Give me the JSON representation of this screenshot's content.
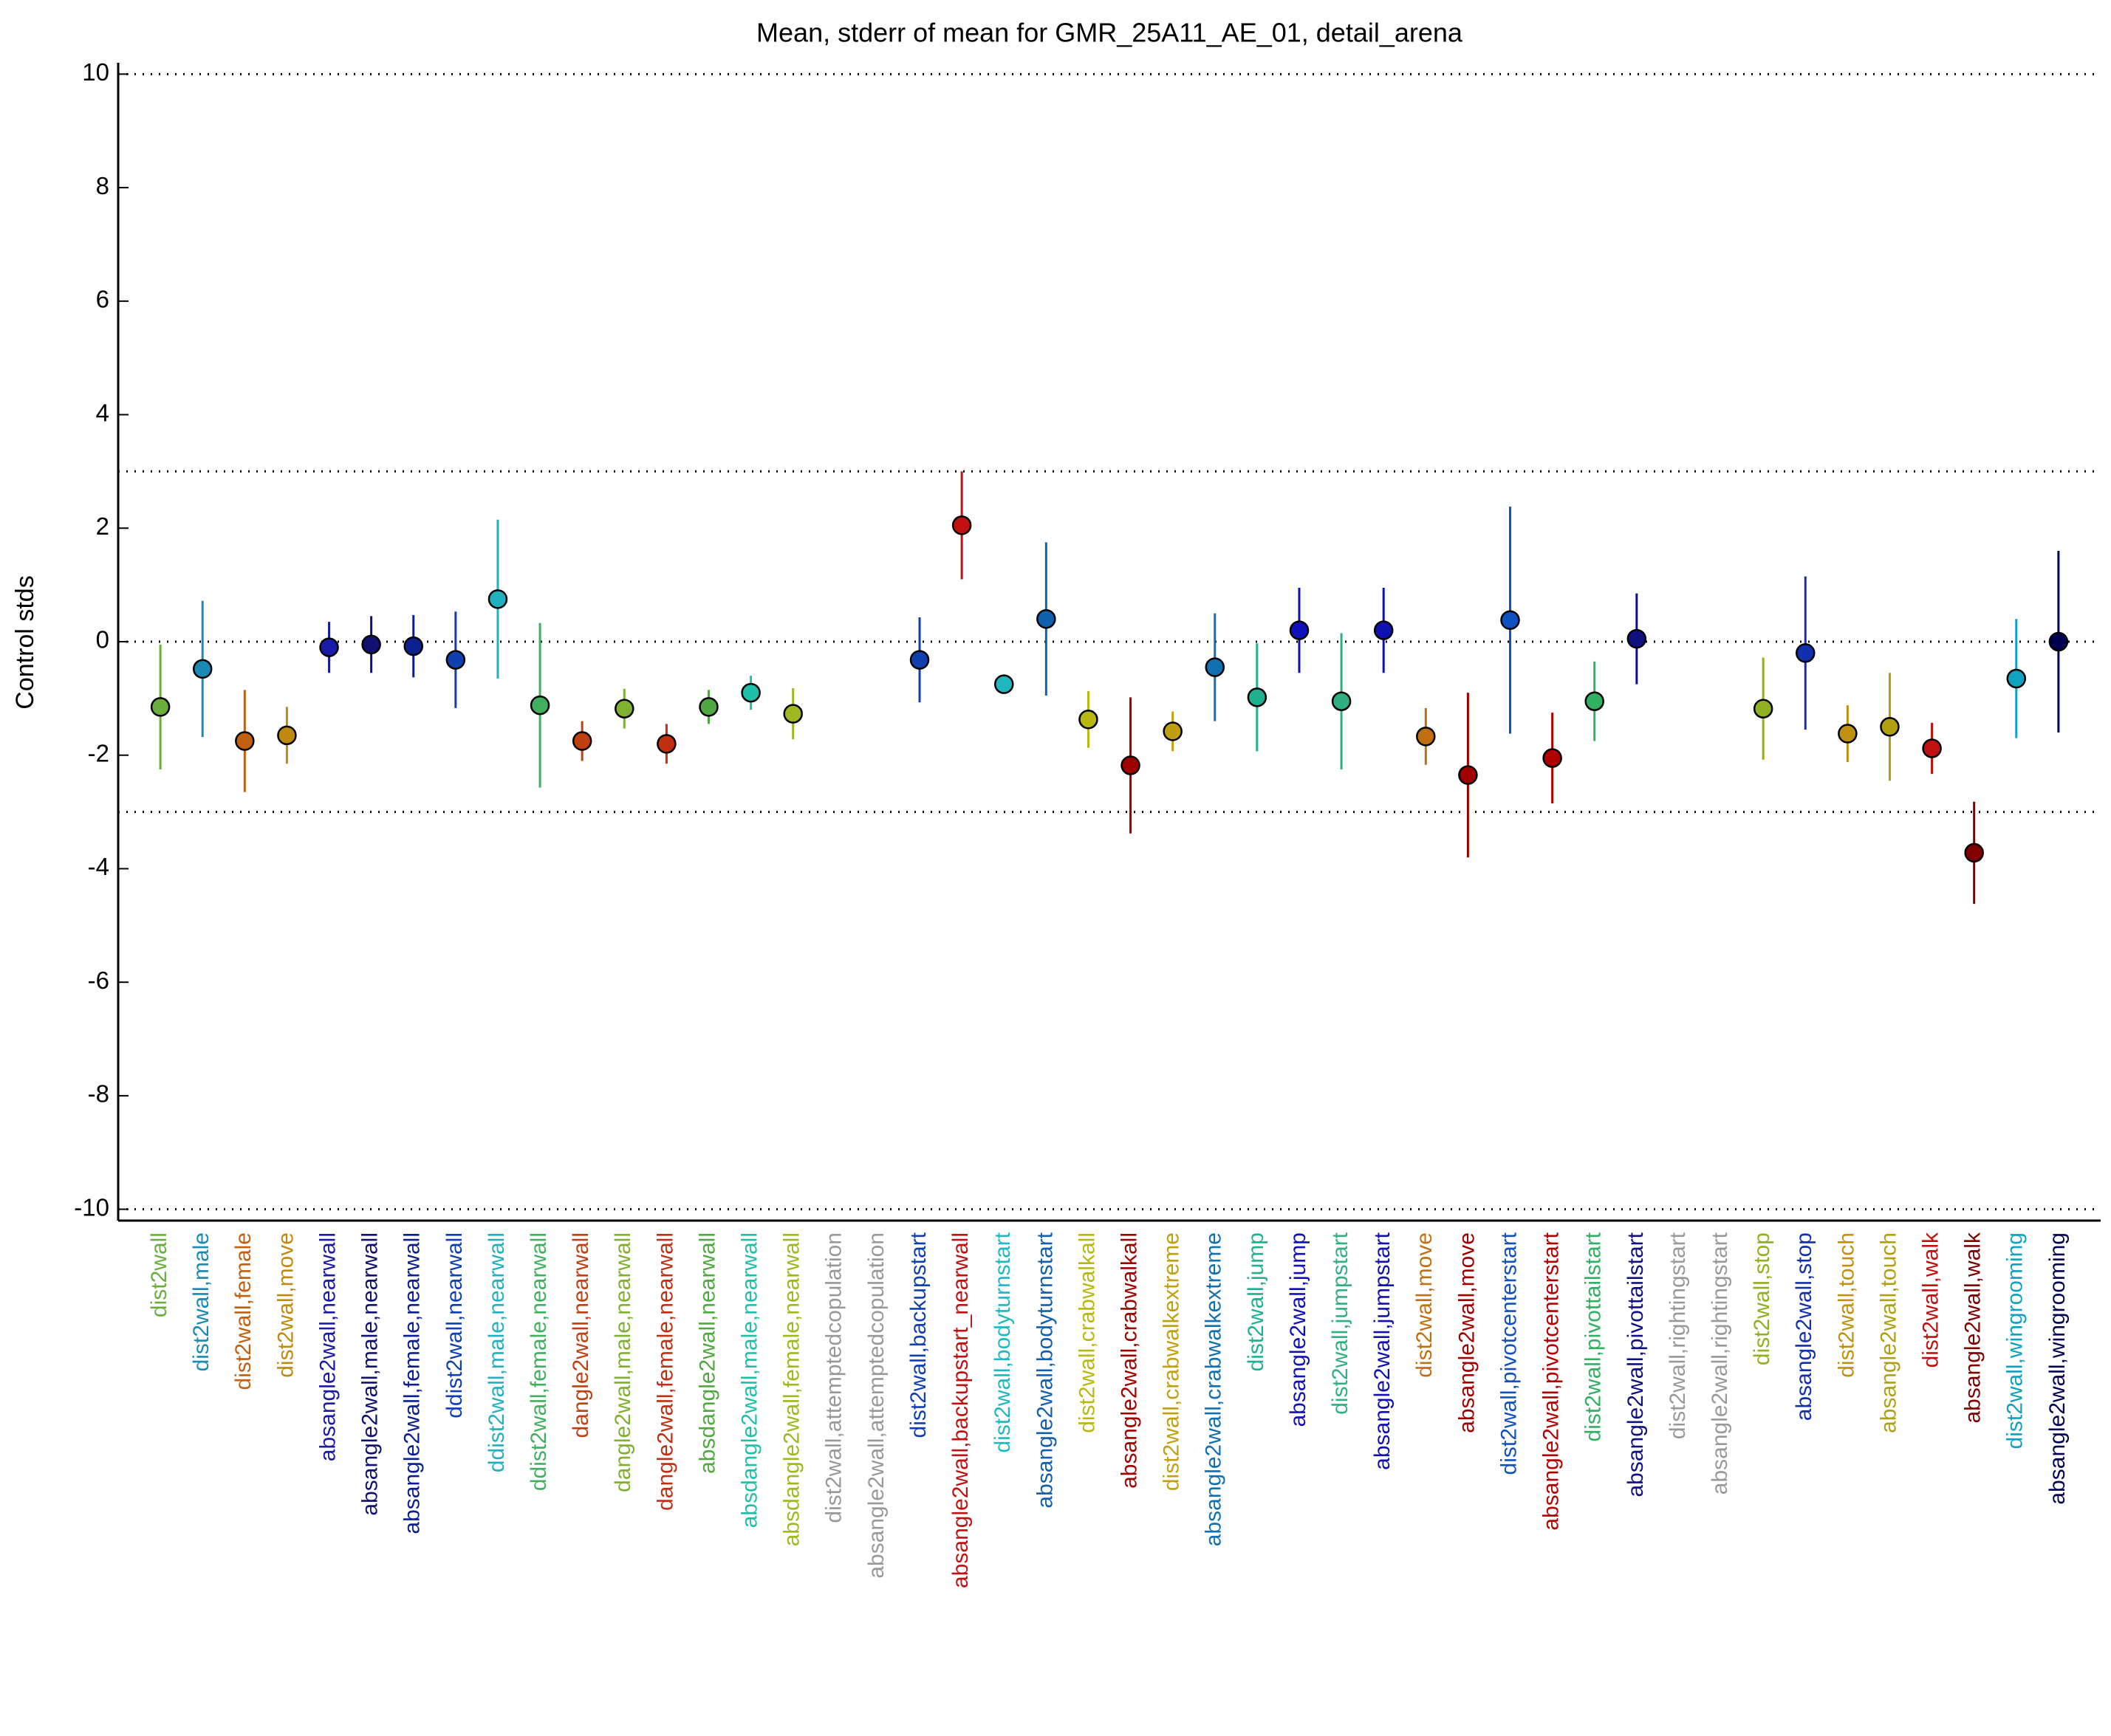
{
  "chart_data": {
    "type": "errorbar",
    "title": "Mean, stderr of mean for GMR_25A11_AE_01, detail_arena",
    "y_label": "Control stds",
    "categories": [
      "dist2wall",
      "dist2wall,male",
      "dist2wall,female",
      "dist2wall,move",
      "absangle2wall,nearwall",
      "absangle2wall,male,nearwall",
      "absangle2wall,female,nearwall",
      "ddist2wall,nearwall",
      "ddist2wall,male,nearwall",
      "ddist2wall,female,nearwall",
      "dangle2wall,nearwall",
      "dangle2wall,male,nearwall",
      "dangle2wall,female,nearwall",
      "absdangle2wall,nearwall",
      "absdangle2wall,male,nearwall",
      "absdangle2wall,female,nearwall",
      "dist2wall,attemptedcopulation",
      "absangle2wall,attemptedcopulation",
      "dist2wall,backupstart",
      "absangle2wall,backupstart_nearwall",
      "dist2wall,bodyturnstart",
      "absangle2wall,bodyturnstart",
      "dist2wall,crabwalkall",
      "absangle2wall,crabwalkall",
      "dist2wall,crabwalkextreme",
      "absangle2wall,crabwalkextreme",
      "dist2wall,jump",
      "absangle2wall,jump",
      "dist2wall,jumpstart",
      "absangle2wall,jumpstart",
      "dist2wall,move",
      "absangle2wall,move",
      "dist2wall,pivotcenterstart",
      "absangle2wall,pivotcenterstart",
      "dist2wall,pivottailstart",
      "absangle2wall,pivottailstart",
      "dist2wall,rightingstart",
      "absangle2wall,rightingstart",
      "dist2wall,stop",
      "absangle2wall,stop",
      "dist2wall,touch",
      "absangle2wall,touch",
      "dist2wall,walk",
      "absangle2wall,walk",
      "dist2wall,wingrooming",
      "absangle2wall,wingrooming"
    ],
    "values": [
      -1.15,
      -0.48,
      -1.75,
      -1.65,
      -0.1,
      -0.05,
      -0.08,
      -0.32,
      0.75,
      -1.12,
      -1.75,
      -1.18,
      -1.8,
      -1.15,
      -0.9,
      -1.27,
      null,
      null,
      -0.32,
      2.05,
      -0.75,
      0.4,
      -1.37,
      -2.18,
      -1.58,
      -0.45,
      -0.98,
      0.2,
      -1.05,
      0.2,
      -1.67,
      -2.35,
      0.38,
      -2.05,
      -1.05,
      0.05,
      null,
      null,
      -1.18,
      -0.2,
      -1.62,
      -1.5,
      -1.88,
      -3.72,
      -0.65,
      0.0
    ],
    "errors": [
      1.1,
      1.2,
      0.9,
      0.5,
      0.45,
      0.5,
      0.55,
      0.85,
      1.4,
      1.45,
      0.35,
      0.35,
      0.35,
      0.3,
      0.3,
      0.45,
      null,
      null,
      0.75,
      0.95,
      0.1,
      1.35,
      0.5,
      1.2,
      0.35,
      0.95,
      0.95,
      0.75,
      1.2,
      0.75,
      0.5,
      1.45,
      2.0,
      0.8,
      0.7,
      0.8,
      null,
      null,
      0.9,
      1.35,
      0.5,
      0.95,
      0.45,
      0.9,
      1.05,
      1.6
    ],
    "colors": [
      "#6aae3c",
      "#1a8ab4",
      "#c06010",
      "#c08a10",
      "#1a1aa8",
      "#101070",
      "#0a2090",
      "#1040b0",
      "#20b0c0",
      "#40b060",
      "#c04010",
      "#80b030",
      "#c03010",
      "#50a840",
      "#20c0a8",
      "#a0b820",
      "#999999",
      "#999999",
      "#1040b0",
      "#c01010",
      "#20b8c0",
      "#1060b0",
      "#b8b810",
      "#a00000",
      "#c0a010",
      "#1070b0",
      "#20b090",
      "#1010b8",
      "#30b080",
      "#1010b0",
      "#c07010",
      "#a00000",
      "#1050c0",
      "#b00000",
      "#30b060",
      "#101080",
      "#999999",
      "#999999",
      "#90b020",
      "#1030b0",
      "#c09010",
      "#b0a010",
      "#c01010",
      "#800000",
      "#10a0c0",
      "#000050"
    ],
    "ylim": [
      -10.2,
      10.2
    ],
    "yticks": [
      -10,
      -8,
      -6,
      -4,
      -2,
      0,
      2,
      4,
      6,
      8,
      10
    ],
    "reference_lines": [
      10,
      3,
      0,
      -3,
      -10
    ]
  }
}
